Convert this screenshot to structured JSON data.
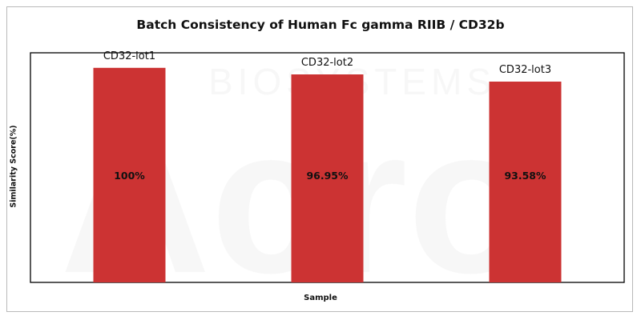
{
  "chart_data": {
    "type": "bar",
    "title": "Batch Consistency of Human Fc gamma RIIB / CD32b",
    "xlabel": "Sample",
    "ylabel": "Similarity Score(%)",
    "categories": [
      "CD32-lot1",
      "CD32-lot2",
      "CD32-lot3"
    ],
    "values": [
      100,
      96.95,
      93.58
    ],
    "value_labels": [
      "100%",
      "96.95%",
      "93.58%"
    ],
    "ylim": [
      0,
      107
    ],
    "grid": false,
    "legend": "none",
    "bar_color": "#cc3333"
  },
  "watermark": "Acro BIOSYSTEMS"
}
